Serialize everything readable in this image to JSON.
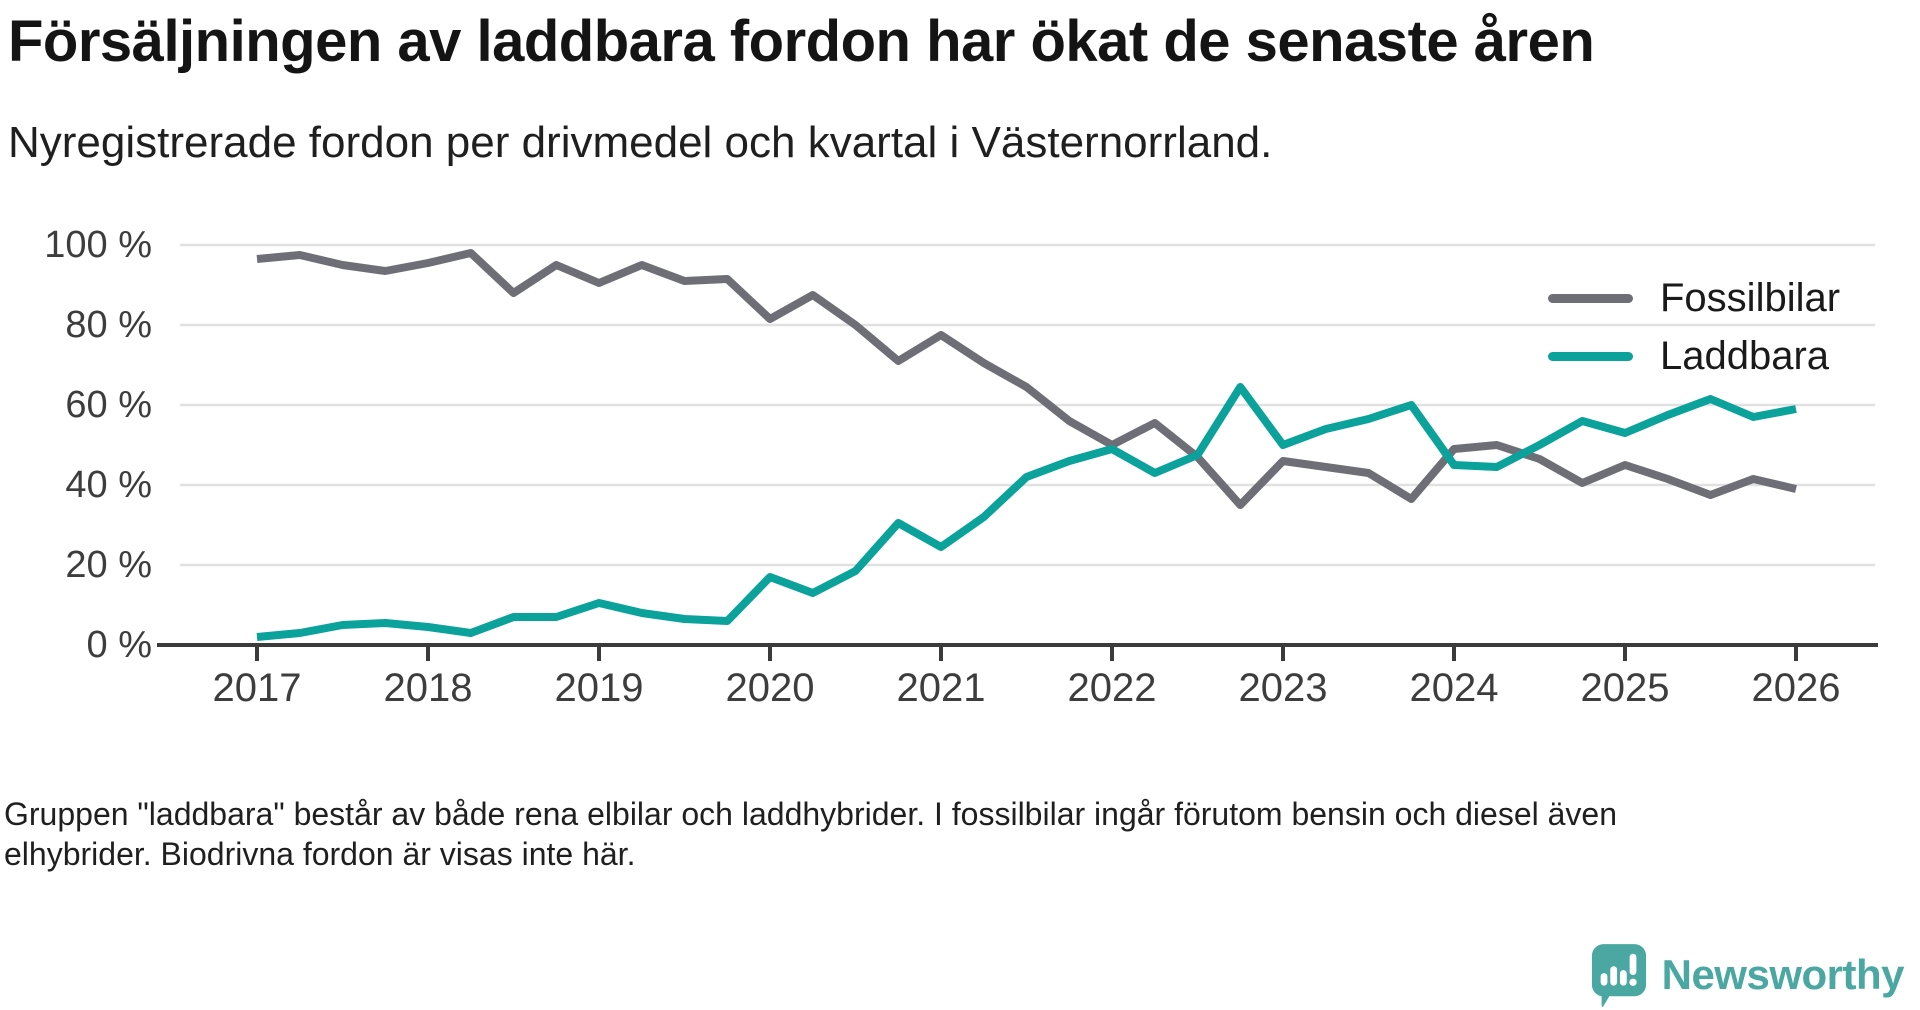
{
  "header": {
    "title": "Försäljningen av laddbara fordon har ökat de senaste åren",
    "subtitle": "Nyregistrerade fordon per drivmedel och kvartal i Västernorrland."
  },
  "chart_data": {
    "type": "line",
    "x_unit": "quarter",
    "x_start": "2017 Q1",
    "x_end": "2026 Q1",
    "x_tick_labels": [
      "2017",
      "2018",
      "2019",
      "2020",
      "2021",
      "2022",
      "2023",
      "2024",
      "2025",
      "2026"
    ],
    "y_tick_labels": [
      "100 %",
      "80 %",
      "60 %",
      "40 %",
      "20 %",
      "0 %"
    ],
    "y_tick_values": [
      100,
      80,
      60,
      40,
      20,
      0
    ],
    "ylim": [
      0,
      100
    ],
    "grid": "horizontal",
    "legend_position": "top-right-inside",
    "colors": {
      "gridline": "#e1e1e1",
      "axis": "#3b3b3b",
      "tick_label": "#3d3d3d"
    },
    "series": [
      {
        "name": "Fossilbilar",
        "color": "#6e6e76",
        "values": [
          96.5,
          97.5,
          95,
          93.5,
          95.5,
          98,
          88,
          95,
          90.5,
          95,
          91,
          91.5,
          81.5,
          87.5,
          80,
          71,
          77.5,
          70.5,
          64.5,
          56,
          50,
          55.5,
          47,
          35,
          46,
          44.5,
          43,
          36.5,
          49,
          50,
          46.5,
          40.5,
          45,
          41.5,
          37.5,
          41.5,
          39
        ]
      },
      {
        "name": "Laddbara",
        "color": "#0aa29b",
        "values": [
          2,
          3,
          5,
          5.5,
          4.5,
          3,
          7,
          7,
          10.5,
          8,
          6.5,
          6,
          17,
          13,
          18.5,
          30.5,
          24.5,
          32,
          42,
          46,
          49,
          43,
          47.5,
          64.5,
          50,
          54,
          56.5,
          60,
          45,
          44.5,
          50,
          56,
          53,
          57.5,
          61.5,
          57,
          59
        ]
      }
    ]
  },
  "footer": {
    "line1": "Gruppen \"laddbara\" består av både rena elbilar och laddhybrider. I fossilbilar ingår förutom bensin och diesel även",
    "line2": "elhybrider. Biodrivna fordon är visas inte här."
  },
  "logo": {
    "text": "Newsworthy",
    "color": "#4aa7a2",
    "icon": "newsworthy-chart-bubble-icon"
  }
}
